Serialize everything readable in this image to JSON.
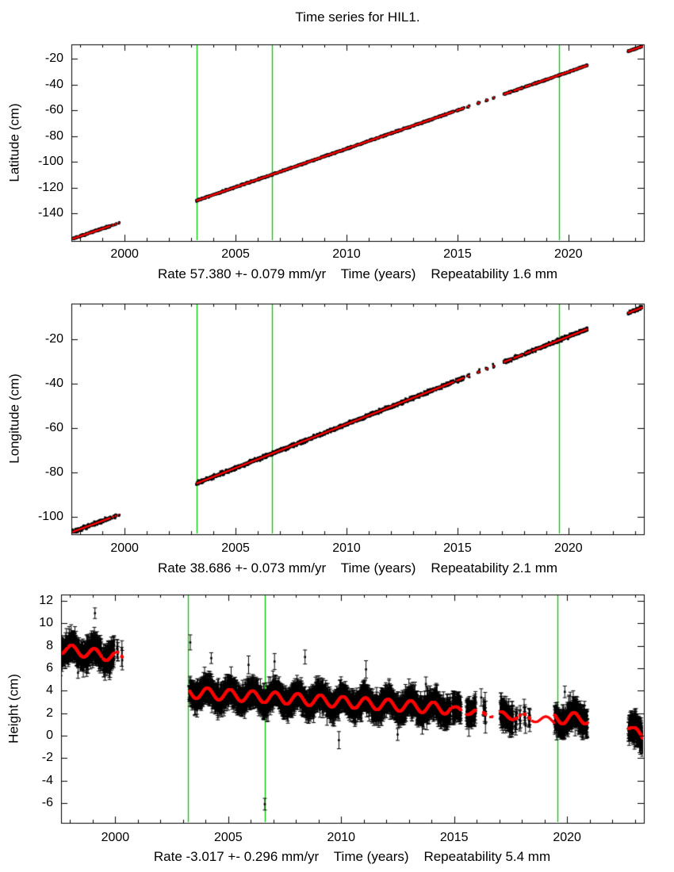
{
  "title": "Time series for HIL1.",
  "station": "HIL1",
  "colors": {
    "background": "#ffffff",
    "axis": "#000000",
    "data_points": "#000000",
    "model_line": "#ff0000",
    "event_line": "#00c800"
  },
  "panels": [
    {
      "name": "latitude",
      "ylabel": "Latitude (cm)",
      "xlabel": "Time (years)",
      "rate_label": "Rate 57.380 +- 0.079 mm/yr",
      "repeatability_label": "Repeatability 1.6 mm",
      "rate_mm_yr": "57.380",
      "rate_sigma_mm_yr": "0.079",
      "repeatability_mm": "1.6",
      "stats_line": "Rate 57.380 +- 0.079 mm/yr    Time (years)    Repeatability 1.6 mm"
    },
    {
      "name": "longitude",
      "ylabel": "Longitude (cm)",
      "xlabel": "Time (years)",
      "rate_label": "Rate 38.686 +- 0.073 mm/yr",
      "repeatability_label": "Repeatability 2.1 mm",
      "rate_mm_yr": "38.686",
      "rate_sigma_mm_yr": "0.073",
      "repeatability_mm": "2.1",
      "stats_line": "Rate 38.686 +- 0.073 mm/yr    Time (years)    Repeatability 2.1 mm"
    },
    {
      "name": "height",
      "ylabel": "Height (cm)",
      "xlabel": "Time (years)",
      "rate_label": "Rate -3.017 +- 0.296 mm/yr",
      "repeatability_label": "Repeatability 5.4 mm",
      "rate_mm_yr": "-3.017",
      "rate_sigma_mm_yr": "0.296",
      "repeatability_mm": "5.4",
      "stats_line": "Rate -3.017 +- 0.296 mm/yr    Time (years)    Repeatability 5.4 mm"
    }
  ],
  "chart_data": [
    {
      "type": "scatter",
      "series_name": "latitude",
      "xlim": [
        1997.6,
        2023.4
      ],
      "ylim": [
        -161.5,
        -8.7
      ],
      "xticks_major": [
        2000,
        2005,
        2010,
        2015,
        2020
      ],
      "xtick_minor_step": 1,
      "yticks_major": [
        -140,
        -120,
        -100,
        -80,
        -60,
        -40,
        -20
      ],
      "vlines": [
        2003.23,
        2006.63,
        2019.57
      ],
      "trend_segments": [
        {
          "window": [
            1997.5,
            2001.5
          ],
          "t0": 1997.58,
          "v0": -160.2,
          "rate": 5.85,
          "amp": 0,
          "peak": 0
        },
        {
          "window": [
            2001.5,
            2023.4
          ],
          "t0": 2003.23,
          "v0": -130.2,
          "rate": 5.97,
          "amp": 0,
          "peak": 0
        }
      ],
      "data_windows": [
        [
          1997.58,
          1999.36
        ],
        [
          1999.42,
          1999.52
        ],
        [
          1999.56,
          1999.64
        ],
        [
          1999.74,
          1999.77
        ],
        [
          2003.23,
          2014.84
        ],
        [
          2014.93,
          2015.3
        ],
        [
          2015.44,
          2015.54
        ],
        [
          2015.9,
          2016.0
        ],
        [
          2016.28,
          2016.36
        ],
        [
          2016.6,
          2016.66
        ],
        [
          2017.08,
          2017.45
        ],
        [
          2017.52,
          2017.95
        ],
        [
          2018.03,
          2018.32
        ],
        [
          2018.36,
          2020.86
        ],
        [
          2022.68,
          2023.35
        ]
      ],
      "red_extra_windows": [],
      "outliers": [],
      "noise_sd_cm": 0.38,
      "error_bars": false
    },
    {
      "type": "scatter",
      "series_name": "longitude",
      "xlim": [
        1997.6,
        2023.4
      ],
      "ylim": [
        -107.9,
        -3.9
      ],
      "xticks_major": [
        2000,
        2005,
        2010,
        2015,
        2020
      ],
      "xtick_minor_step": 1,
      "yticks_major": [
        -100,
        -80,
        -60,
        -40,
        -20
      ],
      "vlines": [
        2003.23,
        2006.63,
        2019.57
      ],
      "trend_segments": [
        {
          "window": [
            1997.5,
            2001.5
          ],
          "t0": 1997.58,
          "v0": -107.1,
          "rate": 3.7,
          "amp": 0,
          "peak": 0
        },
        {
          "window": [
            2001.5,
            2023.4
          ],
          "t0": 2003.23,
          "v0": -85.0,
          "rate": 3.95,
          "amp": 0,
          "peak": 0
        }
      ],
      "data_windows": [
        [
          1997.58,
          1999.36
        ],
        [
          1999.42,
          1999.52
        ],
        [
          1999.56,
          1999.64
        ],
        [
          1999.74,
          1999.77
        ],
        [
          2003.23,
          2014.84
        ],
        [
          2014.93,
          2015.3
        ],
        [
          2015.44,
          2015.54
        ],
        [
          2015.9,
          2016.0
        ],
        [
          2016.28,
          2016.36
        ],
        [
          2016.6,
          2016.66
        ],
        [
          2017.08,
          2017.45
        ],
        [
          2017.52,
          2017.95
        ],
        [
          2018.03,
          2018.32
        ],
        [
          2018.36,
          2020.86
        ],
        [
          2022.68,
          2023.35
        ]
      ],
      "red_extra_windows": [],
      "outliers": [],
      "noise_sd_cm": 0.42,
      "error_bars": false
    },
    {
      "type": "scatter",
      "series_name": "height",
      "xlim": [
        1997.6,
        2023.4
      ],
      "ylim": [
        -7.76,
        12.56
      ],
      "xticks_major": [
        2000,
        2005,
        2010,
        2015,
        2020
      ],
      "xtick_minor_step": 1,
      "yticks_major": [
        -6,
        -4,
        -2,
        0,
        2,
        4,
        6,
        8,
        10,
        12
      ],
      "vlines": [
        2003.23,
        2006.63,
        2019.57
      ],
      "trend_segments": [
        {
          "window": [
            1997.5,
            2001.5
          ],
          "t0": 1997.58,
          "v0": 7.75,
          "rate": -0.3,
          "amp": 0.45,
          "peak": 0.08
        },
        {
          "window": [
            2001.5,
            2014.85
          ],
          "t0": 2003.23,
          "v0": 3.85,
          "rate": -0.125,
          "amp": 0.5,
          "peak": 0.08
        },
        {
          "window": [
            2014.85,
            2019.44
          ],
          "t0": 2014.85,
          "v0": 2.33,
          "rate": -0.22,
          "amp": 0.3,
          "peak": 0.08
        },
        {
          "window": [
            2019.44,
            2021.2
          ],
          "t0": 2019.45,
          "v0": 1.55,
          "rate": 0.0,
          "amp": 0.5,
          "peak": 0.3
        },
        {
          "window": [
            2021.2,
            2023.4
          ],
          "t0": 2022.72,
          "v0": 0.8,
          "rate": -1.5,
          "amp": 0.35,
          "peak": 0.05
        }
      ],
      "data_windows": [
        [
          1997.58,
          1999.4
        ],
        [
          1999.46,
          1999.95
        ],
        [
          2000.08,
          2000.12
        ],
        [
          2000.28,
          2000.31
        ],
        [
          2003.28,
          2014.84
        ],
        [
          2014.93,
          2015.3
        ],
        [
          2015.55,
          2015.95
        ],
        [
          2016.3,
          2016.4
        ],
        [
          2017.05,
          2017.6
        ],
        [
          2017.7,
          2017.78
        ],
        [
          2017.9,
          2017.94
        ],
        [
          2018.1,
          2018.16
        ],
        [
          2018.3,
          2018.36
        ],
        [
          2019.45,
          2020.9
        ],
        [
          2022.72,
          2023.35
        ]
      ],
      "red_extra_windows": [
        {
          "window": [
            1999.6,
            1999.66
          ],
          "dotted": false
        },
        {
          "window": [
            2016.6,
            2016.7
          ],
          "dotted": false
        },
        {
          "window": [
            2018.45,
            2019.44
          ],
          "dotted": true
        }
      ],
      "outliers": [
        [
          1998.35,
          5.6
        ],
        [
          1999.1,
          10.9
        ],
        [
          2003.32,
          8.3
        ],
        [
          2004.25,
          6.9
        ],
        [
          2005.9,
          6.3
        ],
        [
          2007.05,
          6.6
        ],
        [
          2008.4,
          7.0
        ],
        [
          2011.1,
          5.9
        ],
        [
          2013.75,
          4.6
        ],
        [
          2016.2,
          3.4
        ],
        [
          2019.9,
          3.9
        ],
        [
          2006.62,
          -6.1
        ],
        [
          2009.9,
          -0.4
        ],
        [
          2012.5,
          0.1
        ]
      ],
      "noise_sd_cm": 0.42,
      "error_bars": true
    }
  ]
}
